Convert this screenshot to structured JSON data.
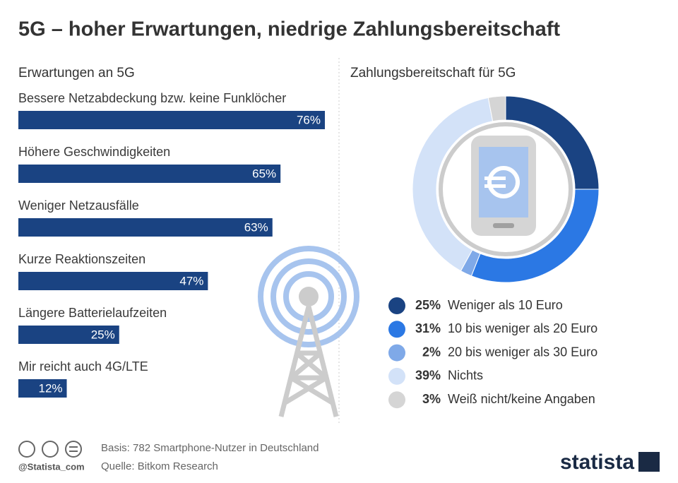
{
  "header": {
    "title": "5G – hoher Erwartungen, niedrige Zahlungsbereitschaft"
  },
  "chart_data": [
    {
      "type": "hbar",
      "title": "Erwartungen an 5G",
      "categories": [
        "Bessere Netzabdeckung bzw. keine Funklöcher",
        "Höhere Geschwindigkeiten",
        "Weniger Netzausfälle",
        "Kurze Reaktionszeiten",
        "Längere Batterielaufzeiten",
        "Mir reicht auch 4G/LTE"
      ],
      "values": [
        76,
        65,
        63,
        47,
        25,
        12
      ],
      "value_labels": [
        "76%",
        "65%",
        "63%",
        "47%",
        "25%",
        "12%"
      ],
      "color": "#1a4382"
    },
    {
      "type": "donut",
      "title": "Zahlungsbereitschaft für 5G",
      "categories": [
        "Weniger als 10 Euro",
        "10 bis weniger als 20 Euro",
        "20 bis weniger als 30 Euro",
        "Nichts",
        "Weiß nicht/keine Angaben"
      ],
      "values": [
        25,
        31,
        2,
        39,
        3
      ],
      "value_labels": [
        "25%",
        "31%",
        "2%",
        "39%",
        "3%"
      ],
      "colors": [
        "#1a4382",
        "#2b78e4",
        "#7fa9e8",
        "#d3e2f8",
        "#d5d5d5"
      ]
    }
  ],
  "footer": {
    "basis": "Basis: 782 Smartphone-Nutzer in Deutschland",
    "source": "Quelle: Bitkom Research",
    "handle": "@Statista_com",
    "brand": "statista"
  }
}
